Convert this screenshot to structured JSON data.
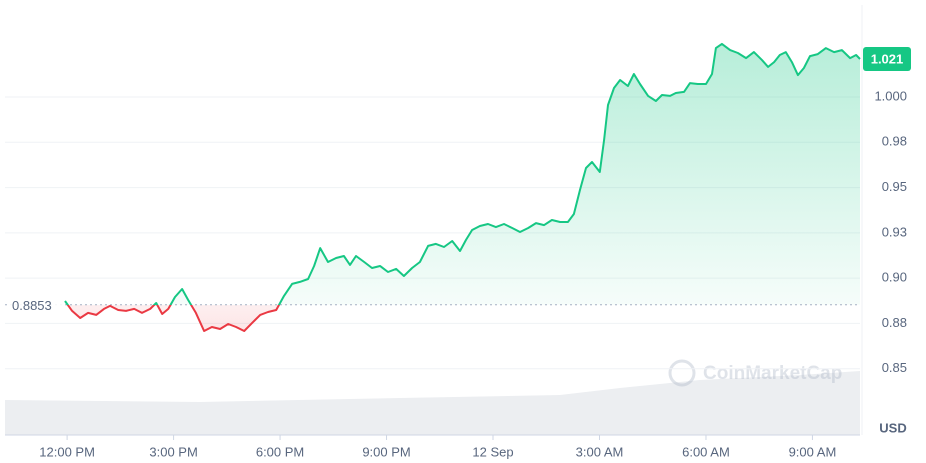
{
  "chart_data": {
    "type": "line",
    "x": [
      -0.06,
      0.14,
      0.37,
      0.59,
      0.82,
      1.04,
      1.21,
      1.44,
      1.66,
      1.89,
      2.11,
      2.34,
      2.51,
      2.68,
      2.85,
      3.04,
      3.24,
      3.41,
      3.63,
      3.86,
      4.08,
      4.31,
      4.54,
      4.76,
      4.99,
      5.21,
      5.44,
      5.66,
      5.89,
      6.11,
      6.34,
      6.56,
      6.79,
      6.96,
      7.13,
      7.35,
      7.58,
      7.8,
      7.97,
      8.14,
      8.37,
      8.59,
      8.82,
      9.04,
      9.27,
      9.49,
      9.72,
      9.94,
      10.17,
      10.39,
      10.62,
      10.85,
      11.07,
      11.24,
      11.41,
      11.63,
      11.86,
      12.08,
      12.31,
      12.54,
      12.76,
      12.99,
      13.21,
      13.44,
      13.66,
      13.89,
      14.11,
      14.28,
      14.45,
      14.62,
      14.79,
      15.01,
      15.13,
      15.24,
      15.41,
      15.58,
      15.8,
      15.97,
      16.14,
      16.37,
      16.59,
      16.76,
      16.99,
      17.15,
      17.38,
      17.55,
      17.77,
      18.0,
      18.17,
      18.28,
      18.45,
      18.68,
      18.9,
      19.13,
      19.35,
      19.58,
      19.75,
      19.92,
      20.08,
      20.25,
      20.42,
      20.59,
      20.76,
      20.93,
      21.15,
      21.38,
      21.61,
      21.83,
      22.06,
      22.23,
      22.34
    ],
    "values": [
      0.8874,
      0.8819,
      0.878,
      0.8808,
      0.8797,
      0.883,
      0.8847,
      0.8824,
      0.8819,
      0.883,
      0.8808,
      0.883,
      0.8863,
      0.8802,
      0.883,
      0.8896,
      0.894,
      0.888,
      0.8808,
      0.8708,
      0.873,
      0.8719,
      0.8747,
      0.873,
      0.8708,
      0.8752,
      0.8797,
      0.8813,
      0.8824,
      0.8902,
      0.8968,
      0.8979,
      0.8995,
      0.9067,
      0.9166,
      0.9089,
      0.9111,
      0.9122,
      0.9073,
      0.9122,
      0.9089,
      0.9056,
      0.9067,
      0.9034,
      0.9051,
      0.9012,
      0.9056,
      0.9089,
      0.9178,
      0.9189,
      0.9172,
      0.9205,
      0.915,
      0.9211,
      0.9266,
      0.9288,
      0.9299,
      0.9282,
      0.9299,
      0.9277,
      0.9255,
      0.9277,
      0.9304,
      0.9293,
      0.9321,
      0.931,
      0.931,
      0.9354,
      0.9487,
      0.9608,
      0.9641,
      0.9586,
      0.9763,
      0.9956,
      1.005,
      1.0094,
      1.0061,
      1.0127,
      1.0072,
      1.0006,
      0.9978,
      1.0011,
      1.0006,
      1.0022,
      1.0028,
      1.0077,
      1.0072,
      1.0072,
      1.0127,
      1.027,
      1.0293,
      1.0259,
      1.0243,
      1.0215,
      1.0248,
      1.0204,
      1.0166,
      1.0193,
      1.0232,
      1.0248,
      1.0193,
      1.0121,
      1.016,
      1.0226,
      1.0237,
      1.027,
      1.0248,
      1.0259,
      1.0215,
      1.0232,
      1.021
    ],
    "up_color": "#16c784",
    "down_color": "#ea3943",
    "baseline": 0.8853,
    "current_price": 1.021,
    "xlim": [
      -1.75,
      22.34
    ],
    "xticks": [
      {
        "value": 0,
        "label": "12:00 PM"
      },
      {
        "value": 3,
        "label": "3:00 PM"
      },
      {
        "value": 6,
        "label": "6:00 PM"
      },
      {
        "value": 9,
        "label": "9:00 PM"
      },
      {
        "value": 12,
        "label": "12 Sep"
      },
      {
        "value": 15,
        "label": "3:00 AM"
      },
      {
        "value": 18,
        "label": "6:00 AM"
      },
      {
        "value": 21,
        "label": "9:00 AM"
      }
    ],
    "ylim": [
      0.8134,
      1.0508
    ],
    "yticks": [
      0.85,
      {
        "value": 0.875,
        "label": "0.88"
      },
      {
        "value": 0.9,
        "label": "0.90"
      },
      {
        "value": 0.925,
        "label": "0.93"
      },
      {
        "value": 0.95,
        "label": "0.95"
      },
      {
        "value": 0.975,
        "label": "0.98"
      },
      {
        "value": 1.0,
        "label": "1.000"
      }
    ],
    "grid": true,
    "y_unit": "USD",
    "watermark": "CoinMarketCap"
  }
}
